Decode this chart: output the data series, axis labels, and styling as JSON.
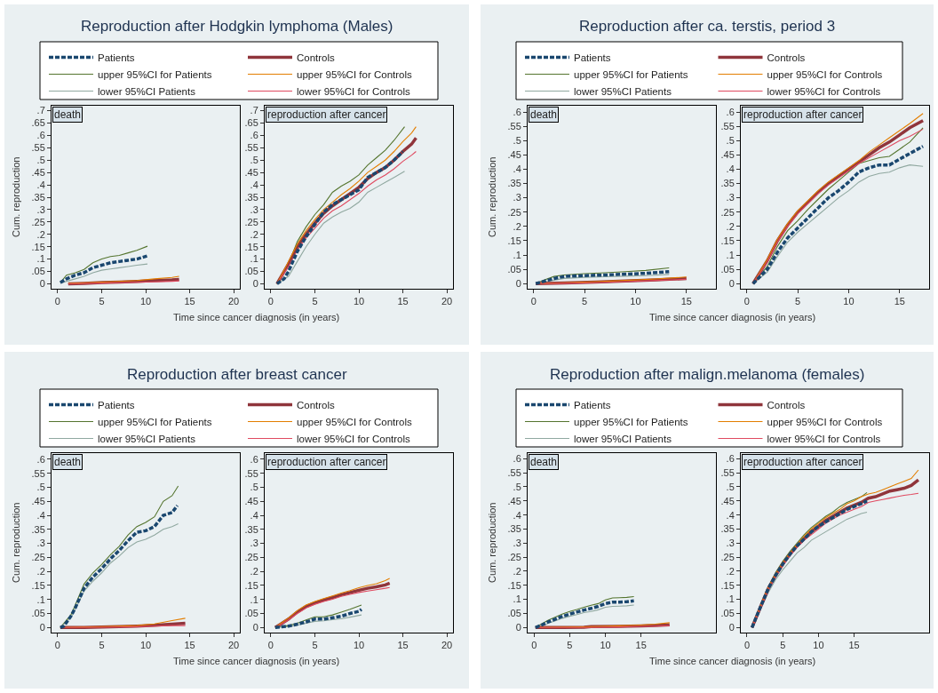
{
  "chart_data": [
    {
      "type": "line",
      "title": "Reproduction after Hodgkin lymphoma (Males)",
      "subtitle": "death",
      "ylabel": "Cum. reproduction",
      "legend": "top",
      "xlim": [
        -0.7,
        20.7
      ],
      "ylim": [
        -0.02,
        0.72
      ],
      "xticks": [
        0,
        5,
        10,
        15,
        20
      ],
      "yticks": [
        0,
        {
          "value": 0.05,
          "label": ".05"
        },
        {
          "value": 0.1,
          "label": ".1"
        },
        {
          "value": 0.15,
          "label": ".15"
        },
        {
          "value": 0.2,
          "label": ".2"
        },
        {
          "value": 0.25,
          "label": ".25"
        },
        {
          "value": 0.3,
          "label": ".3"
        },
        {
          "value": 0.35,
          "label": ".35"
        },
        {
          "value": 0.4,
          "label": ".4"
        },
        {
          "value": 0.45,
          "label": ".45"
        },
        {
          "value": 0.5,
          "label": ".5"
        },
        {
          "value": 0.55,
          "label": ".55"
        },
        {
          "value": 0.6,
          "label": ".6"
        },
        {
          "value": 0.65,
          "label": ".65"
        },
        {
          "value": 0.7,
          "label": ".7"
        }
      ],
      "series": [
        {
          "name": "Patients",
          "color": "#1a476f",
          "line_style": "dashed",
          "x": [
            0.3,
            1,
            2,
            3,
            4,
            5,
            6,
            7,
            8,
            9,
            10.2
          ],
          "values": [
            0.005,
            0.02,
            0.035,
            0.045,
            0.065,
            0.075,
            0.085,
            0.09,
            0.095,
            0.1,
            0.113
          ]
        },
        {
          "name": "upper 95%CI for Patients",
          "color": "#55752f",
          "x": [
            0.3,
            1,
            2,
            3,
            4,
            5,
            6,
            7,
            8,
            9,
            10.2
          ],
          "values": [
            0.005,
            0.035,
            0.045,
            0.058,
            0.085,
            0.1,
            0.11,
            0.115,
            0.125,
            0.135,
            0.152
          ]
        },
        {
          "name": "lower 95%CI Patients",
          "color": "#90a8a0",
          "x": [
            0.3,
            1,
            2,
            3,
            4,
            5,
            6,
            7,
            8,
            9,
            10.2
          ],
          "values": [
            0.002,
            0.01,
            0.02,
            0.03,
            0.045,
            0.055,
            0.06,
            0.065,
            0.07,
            0.075,
            0.08
          ]
        },
        {
          "name": "Controls",
          "color": "#90353b",
          "x": [
            1.2,
            3,
            5,
            7,
            9,
            11,
            13,
            13.8
          ],
          "values": [
            0,
            0.002,
            0.005,
            0.007,
            0.01,
            0.013,
            0.016,
            0.018
          ]
        },
        {
          "name": "upper 95%CI for Controls",
          "color": "#e37e00",
          "x": [
            1.2,
            5,
            9,
            11,
            13,
            13.8
          ],
          "values": [
            0.001,
            0.007,
            0.013,
            0.02,
            0.026,
            0.03
          ]
        },
        {
          "name": "lower 95%CI for Controls",
          "color": "#e04a60",
          "x": [
            1.2,
            5,
            9,
            11,
            13,
            13.8
          ],
          "values": [
            0,
            0.003,
            0.006,
            0.008,
            0.01,
            0.012
          ]
        }
      ]
    },
    {
      "type": "line",
      "subtitle": "reproduction after cancer",
      "xlabel": "Time since cancer diagnosis (in years)",
      "xlim": [
        -0.7,
        20.7
      ],
      "ylim": [
        -0.02,
        0.72
      ],
      "xticks": [
        0,
        5,
        10,
        15,
        20
      ],
      "yticks": [
        0,
        {
          "value": 0.05,
          "label": ".05"
        },
        {
          "value": 0.1,
          "label": ".1"
        },
        {
          "value": 0.15,
          "label": ".15"
        },
        {
          "value": 0.2,
          "label": ".2"
        },
        {
          "value": 0.25,
          "label": ".25"
        },
        {
          "value": 0.3,
          "label": ".3"
        },
        {
          "value": 0.35,
          "label": ".35"
        },
        {
          "value": 0.4,
          "label": ".4"
        },
        {
          "value": 0.45,
          "label": ".45"
        },
        {
          "value": 0.5,
          "label": ".5"
        },
        {
          "value": 0.55,
          "label": ".55"
        },
        {
          "value": 0.6,
          "label": ".6"
        },
        {
          "value": 0.65,
          "label": ".65"
        },
        {
          "value": 0.7,
          "label": ".7"
        }
      ],
      "series": [
        {
          "color": "#1a476f",
          "line_style": "dashed",
          "x": [
            0.7,
            1.5,
            2,
            3,
            4,
            5,
            6,
            7,
            8,
            9,
            10,
            11,
            12,
            13,
            14,
            15
          ],
          "values": [
            0,
            0.02,
            0.05,
            0.13,
            0.19,
            0.24,
            0.29,
            0.32,
            0.34,
            0.36,
            0.38,
            0.43,
            0.45,
            0.47,
            0.5,
            0.535
          ]
        },
        {
          "color": "#55752f",
          "x": [
            0.7,
            2,
            3,
            4,
            5,
            6,
            7,
            8,
            9,
            10,
            11,
            12,
            13,
            14,
            15.2
          ],
          "values": [
            0,
            0.08,
            0.17,
            0.23,
            0.28,
            0.32,
            0.37,
            0.395,
            0.415,
            0.44,
            0.48,
            0.51,
            0.54,
            0.58,
            0.635
          ]
        },
        {
          "color": "#90a8a0",
          "x": [
            0.7,
            2,
            3,
            4,
            5,
            6,
            7,
            8,
            9,
            10,
            11,
            12,
            13,
            14,
            15.2
          ],
          "values": [
            0,
            0.03,
            0.09,
            0.15,
            0.2,
            0.245,
            0.27,
            0.29,
            0.305,
            0.33,
            0.37,
            0.39,
            0.41,
            0.43,
            0.455
          ]
        },
        {
          "color": "#90353b",
          "x": [
            0.7,
            2,
            3,
            4,
            5,
            6,
            7,
            8,
            9,
            10,
            11,
            12,
            13,
            14,
            15,
            16,
            16.5
          ],
          "values": [
            0,
            0.08,
            0.15,
            0.2,
            0.245,
            0.285,
            0.315,
            0.34,
            0.365,
            0.39,
            0.425,
            0.45,
            0.47,
            0.5,
            0.535,
            0.565,
            0.59
          ]
        },
        {
          "color": "#e37e00",
          "x": [
            0.7,
            2,
            3,
            4,
            5,
            6,
            7,
            8,
            9,
            10,
            11,
            12,
            13,
            14,
            15,
            16,
            16.5
          ],
          "values": [
            0,
            0.09,
            0.16,
            0.215,
            0.26,
            0.3,
            0.33,
            0.36,
            0.385,
            0.415,
            0.45,
            0.475,
            0.5,
            0.535,
            0.575,
            0.61,
            0.635
          ]
        },
        {
          "color": "#e04a60",
          "x": [
            0.7,
            2,
            3,
            4,
            5,
            6,
            7,
            8,
            9,
            10,
            11,
            12,
            13,
            14,
            15,
            16,
            16.5
          ],
          "values": [
            0,
            0.07,
            0.135,
            0.185,
            0.225,
            0.265,
            0.295,
            0.315,
            0.34,
            0.365,
            0.395,
            0.42,
            0.44,
            0.465,
            0.495,
            0.52,
            0.535
          ]
        }
      ]
    },
    {
      "type": "line",
      "title": "Reproduction after ca. terstis, period 3",
      "subtitle": "death",
      "ylabel": "Cum. reproduction",
      "legend": "top",
      "xlim": [
        -0.6,
        17.9
      ],
      "ylim": [
        -0.018,
        0.622
      ],
      "xticks": [
        0,
        5,
        10,
        15
      ],
      "yticks": [
        0,
        {
          "value": 0.05,
          "label": ".05"
        },
        {
          "value": 0.1,
          "label": ".1"
        },
        {
          "value": 0.15,
          "label": ".15"
        },
        {
          "value": 0.2,
          "label": ".2"
        },
        {
          "value": 0.25,
          "label": ".25"
        },
        {
          "value": 0.3,
          "label": ".3"
        },
        {
          "value": 0.35,
          "label": ".35"
        },
        {
          "value": 0.4,
          "label": ".4"
        },
        {
          "value": 0.45,
          "label": ".45"
        },
        {
          "value": 0.5,
          "label": ".5"
        },
        {
          "value": 0.55,
          "label": ".55"
        },
        {
          "value": 0.6,
          "label": ".6"
        }
      ],
      "series": [
        {
          "name": "Patients",
          "color": "#1a476f",
          "line_style": "dashed",
          "x": [
            0.2,
            1,
            2,
            3,
            5,
            7,
            9,
            11,
            13.3
          ],
          "values": [
            0,
            0.008,
            0.018,
            0.025,
            0.028,
            0.03,
            0.033,
            0.036,
            0.042
          ]
        },
        {
          "name": "upper 95%CI for Patients",
          "color": "#55752f",
          "x": [
            0.2,
            1,
            2,
            3,
            5,
            7,
            9,
            11,
            13.3
          ],
          "values": [
            0,
            0.012,
            0.025,
            0.03,
            0.035,
            0.038,
            0.042,
            0.046,
            0.055
          ]
        },
        {
          "name": "lower 95%CI Patients",
          "color": "#90a8a0",
          "x": [
            0.2,
            1,
            2,
            3,
            5,
            7,
            9,
            11,
            13.3
          ],
          "values": [
            0,
            0.005,
            0.012,
            0.018,
            0.022,
            0.024,
            0.026,
            0.028,
            0.032
          ]
        },
        {
          "name": "Controls",
          "color": "#90353b",
          "x": [
            0.2,
            3,
            6,
            9,
            12,
            15
          ],
          "values": [
            0,
            0.002,
            0.005,
            0.009,
            0.013,
            0.018
          ]
        },
        {
          "name": "upper 95%CI for Controls",
          "color": "#e37e00",
          "x": [
            0.2,
            3,
            6,
            9,
            12,
            15
          ],
          "values": [
            0,
            0.003,
            0.007,
            0.011,
            0.016,
            0.023
          ]
        },
        {
          "name": "lower 95%CI for Controls",
          "color": "#e04a60",
          "x": [
            0.2,
            3,
            6,
            9,
            12,
            15
          ],
          "values": [
            0,
            0.001,
            0.003,
            0.007,
            0.011,
            0.015
          ]
        }
      ]
    },
    {
      "type": "line",
      "subtitle": "reproduction after cancer",
      "xlabel": "Time since cancer diagnosis (in years)",
      "xlim": [
        -0.6,
        17.9
      ],
      "ylim": [
        -0.018,
        0.622
      ],
      "xticks": [
        0,
        5,
        10,
        15
      ],
      "yticks": [
        0,
        {
          "value": 0.05,
          "label": ".05"
        },
        {
          "value": 0.1,
          "label": ".1"
        },
        {
          "value": 0.15,
          "label": ".15"
        },
        {
          "value": 0.2,
          "label": ".2"
        },
        {
          "value": 0.25,
          "label": ".25"
        },
        {
          "value": 0.3,
          "label": ".3"
        },
        {
          "value": 0.35,
          "label": ".35"
        },
        {
          "value": 0.4,
          "label": ".4"
        },
        {
          "value": 0.45,
          "label": ".45"
        },
        {
          "value": 0.5,
          "label": ".5"
        },
        {
          "value": 0.55,
          "label": ".55"
        },
        {
          "value": 0.6,
          "label": ".6"
        }
      ],
      "series": [
        {
          "color": "#1a476f",
          "line_style": "dashed",
          "x": [
            0.6,
            2,
            3,
            4,
            5,
            6,
            7,
            8,
            9,
            10,
            11,
            12,
            13,
            14,
            15,
            16,
            17.3
          ],
          "values": [
            0,
            0.05,
            0.11,
            0.16,
            0.195,
            0.23,
            0.265,
            0.3,
            0.325,
            0.355,
            0.39,
            0.405,
            0.415,
            0.415,
            0.435,
            0.455,
            0.48
          ]
        },
        {
          "color": "#55752f",
          "x": [
            0.6,
            2,
            3,
            4,
            5,
            6,
            7,
            8,
            9,
            10,
            11,
            12,
            13,
            14,
            15,
            16,
            17.3
          ],
          "values": [
            0,
            0.06,
            0.13,
            0.185,
            0.22,
            0.26,
            0.295,
            0.33,
            0.36,
            0.39,
            0.42,
            0.43,
            0.44,
            0.445,
            0.47,
            0.495,
            0.545
          ]
        },
        {
          "color": "#90a8a0",
          "x": [
            0.6,
            2,
            3,
            4,
            5,
            6,
            7,
            8,
            9,
            10,
            11,
            12,
            13,
            14,
            15,
            16,
            17.3
          ],
          "values": [
            0,
            0.04,
            0.095,
            0.145,
            0.18,
            0.21,
            0.24,
            0.27,
            0.3,
            0.325,
            0.355,
            0.375,
            0.385,
            0.39,
            0.405,
            0.415,
            0.41
          ]
        },
        {
          "color": "#90353b",
          "x": [
            0.6,
            2,
            3,
            4,
            5,
            6,
            7,
            8,
            9,
            10,
            11,
            12,
            13,
            14,
            15,
            16,
            17.3
          ],
          "values": [
            0,
            0.08,
            0.15,
            0.205,
            0.25,
            0.285,
            0.32,
            0.35,
            0.375,
            0.4,
            0.425,
            0.45,
            0.475,
            0.495,
            0.52,
            0.545,
            0.57
          ]
        },
        {
          "color": "#e37e00",
          "x": [
            0.6,
            2,
            3,
            4,
            5,
            6,
            7,
            8,
            9,
            10,
            11,
            12,
            13,
            14,
            15,
            16,
            17.3
          ],
          "values": [
            0,
            0.085,
            0.155,
            0.21,
            0.255,
            0.29,
            0.325,
            0.355,
            0.38,
            0.405,
            0.43,
            0.46,
            0.485,
            0.51,
            0.535,
            0.56,
            0.595
          ]
        },
        {
          "color": "#e04a60",
          "x": [
            0.6,
            2,
            3,
            4,
            5,
            6,
            7,
            8,
            9,
            10,
            11,
            12,
            13,
            14,
            15,
            16,
            17.3
          ],
          "values": [
            0,
            0.075,
            0.145,
            0.2,
            0.245,
            0.28,
            0.315,
            0.345,
            0.37,
            0.395,
            0.42,
            0.44,
            0.46,
            0.48,
            0.5,
            0.515,
            0.54
          ]
        }
      ]
    },
    {
      "type": "line",
      "title": "Reproduction after breast cancer",
      "subtitle": "death",
      "ylabel": "Cum. reproduction",
      "legend": "top",
      "xlim": [
        -0.7,
        20.7
      ],
      "ylim": [
        -0.018,
        0.622
      ],
      "xticks": [
        0,
        5,
        10,
        15,
        20
      ],
      "yticks": [
        0,
        {
          "value": 0.05,
          "label": ".05"
        },
        {
          "value": 0.1,
          "label": ".1"
        },
        {
          "value": 0.15,
          "label": ".15"
        },
        {
          "value": 0.2,
          "label": ".2"
        },
        {
          "value": 0.25,
          "label": ".25"
        },
        {
          "value": 0.3,
          "label": ".3"
        },
        {
          "value": 0.35,
          "label": ".35"
        },
        {
          "value": 0.4,
          "label": ".4"
        },
        {
          "value": 0.45,
          "label": ".45"
        },
        {
          "value": 0.5,
          "label": ".5"
        },
        {
          "value": 0.55,
          "label": ".55"
        },
        {
          "value": 0.6,
          "label": ".6"
        }
      ],
      "series": [
        {
          "name": "Patients",
          "color": "#1a476f",
          "line_style": "dashed",
          "x": [
            0.3,
            0.7,
            1.5,
            2,
            3,
            4,
            5,
            6,
            7,
            8,
            9,
            10,
            11,
            12,
            13,
            13.6
          ],
          "values": [
            0,
            0.005,
            0.04,
            0.07,
            0.14,
            0.18,
            0.21,
            0.245,
            0.275,
            0.31,
            0.34,
            0.345,
            0.36,
            0.4,
            0.41,
            0.435
          ]
        },
        {
          "name": "upper 95%CI for Patients",
          "color": "#55752f",
          "x": [
            0.3,
            1.5,
            2,
            3,
            4,
            5,
            6,
            7,
            8,
            9,
            10,
            11,
            12,
            13,
            13.7
          ],
          "values": [
            0,
            0.045,
            0.08,
            0.155,
            0.195,
            0.225,
            0.26,
            0.29,
            0.33,
            0.36,
            0.375,
            0.395,
            0.45,
            0.47,
            0.505
          ]
        },
        {
          "name": "lower 95%CI Patients",
          "color": "#90a8a0",
          "x": [
            0.3,
            1.5,
            2,
            3,
            4,
            5,
            6,
            7,
            8,
            9,
            10,
            11,
            12,
            13,
            13.7
          ],
          "values": [
            0,
            0.035,
            0.065,
            0.13,
            0.165,
            0.195,
            0.23,
            0.255,
            0.285,
            0.305,
            0.315,
            0.33,
            0.35,
            0.36,
            0.37
          ]
        },
        {
          "name": "Controls",
          "color": "#90353b",
          "x": [
            0.3,
            3,
            5,
            7,
            9,
            11,
            13,
            14.5
          ],
          "values": [
            0,
            0,
            0.002,
            0.003,
            0.005,
            0.008,
            0.012,
            0.015
          ]
        },
        {
          "name": "upper 95%CI for Controls",
          "color": "#e37e00",
          "x": [
            0.3,
            5,
            9,
            11,
            13,
            14.5
          ],
          "values": [
            0,
            0.003,
            0.007,
            0.013,
            0.025,
            0.033
          ]
        },
        {
          "name": "lower 95%CI for Controls",
          "color": "#e04a60",
          "x": [
            0.3,
            5,
            9,
            11,
            13,
            14.5
          ],
          "values": [
            0,
            0.001,
            0.003,
            0.005,
            0.007,
            0.007
          ]
        }
      ]
    },
    {
      "type": "line",
      "subtitle": "reproduction after cancer",
      "xlabel": "Time since cancer diagnosis (in years)",
      "xlim": [
        -0.7,
        20.7
      ],
      "ylim": [
        -0.018,
        0.622
      ],
      "xticks": [
        0,
        5,
        10,
        15,
        20
      ],
      "yticks": [
        0,
        {
          "value": 0.05,
          "label": ".05"
        },
        {
          "value": 0.1,
          "label": ".1"
        },
        {
          "value": 0.15,
          "label": ".15"
        },
        {
          "value": 0.2,
          "label": ".2"
        },
        {
          "value": 0.25,
          "label": ".25"
        },
        {
          "value": 0.3,
          "label": ".3"
        },
        {
          "value": 0.35,
          "label": ".35"
        },
        {
          "value": 0.4,
          "label": ".4"
        },
        {
          "value": 0.45,
          "label": ".45"
        },
        {
          "value": 0.5,
          "label": ".5"
        },
        {
          "value": 0.55,
          "label": ".55"
        },
        {
          "value": 0.6,
          "label": ".6"
        }
      ],
      "series": [
        {
          "color": "#1a476f",
          "line_style": "dashed",
          "x": [
            0.5,
            2,
            3,
            4,
            5,
            6,
            7,
            8,
            9,
            10,
            10.3
          ],
          "values": [
            0,
            0.005,
            0.012,
            0.02,
            0.03,
            0.03,
            0.035,
            0.04,
            0.05,
            0.058,
            0.065
          ]
        },
        {
          "color": "#55752f",
          "x": [
            0.5,
            2,
            3,
            4,
            5,
            6,
            7,
            8,
            9,
            10.3
          ],
          "values": [
            0,
            0.007,
            0.015,
            0.027,
            0.038,
            0.038,
            0.045,
            0.055,
            0.065,
            0.08
          ]
        },
        {
          "color": "#90a8a0",
          "x": [
            0.5,
            2,
            3,
            4,
            5,
            6,
            7,
            8,
            9,
            10.3
          ],
          "values": [
            0,
            0.003,
            0.008,
            0.015,
            0.022,
            0.024,
            0.028,
            0.031,
            0.037,
            0.045
          ]
        },
        {
          "color": "#90353b",
          "x": [
            0.5,
            1,
            2,
            3,
            4,
            5,
            6,
            7,
            8,
            9,
            10,
            11,
            12,
            13,
            13.5
          ],
          "values": [
            0,
            0.01,
            0.03,
            0.055,
            0.075,
            0.088,
            0.098,
            0.107,
            0.117,
            0.125,
            0.133,
            0.14,
            0.145,
            0.152,
            0.158
          ]
        },
        {
          "color": "#e37e00",
          "x": [
            0.5,
            1,
            2,
            3,
            4,
            5,
            6,
            7,
            8,
            9,
            10,
            11,
            12,
            13,
            13.5
          ],
          "values": [
            0,
            0.012,
            0.034,
            0.06,
            0.08,
            0.093,
            0.103,
            0.113,
            0.123,
            0.132,
            0.142,
            0.15,
            0.156,
            0.167,
            0.175
          ]
        },
        {
          "color": "#e04a60",
          "x": [
            0.5,
            1,
            2,
            3,
            4,
            5,
            6,
            7,
            8,
            9,
            10,
            11,
            12,
            13,
            13.5
          ],
          "values": [
            0,
            0.008,
            0.027,
            0.05,
            0.07,
            0.083,
            0.093,
            0.101,
            0.111,
            0.118,
            0.125,
            0.13,
            0.135,
            0.14,
            0.143
          ]
        }
      ]
    },
    {
      "type": "line",
      "title": "Reproduction after malign.melanoma (females)",
      "subtitle": "death",
      "ylabel": "Cum. reproduction",
      "legend": "top",
      "xlim": [
        -0.9,
        25.5
      ],
      "ylim": [
        -0.018,
        0.62
      ],
      "xticks": [
        0,
        5,
        10,
        15
      ],
      "yticks": [
        0,
        {
          "value": 0.05,
          "label": ".05"
        },
        {
          "value": 0.1,
          "label": ".1"
        },
        {
          "value": 0.15,
          "label": ".15"
        },
        {
          "value": 0.2,
          "label": ".2"
        },
        {
          "value": 0.25,
          "label": ".25"
        },
        {
          "value": 0.3,
          "label": ".3"
        },
        {
          "value": 0.35,
          "label": ".35"
        },
        {
          "value": 0.4,
          "label": ".4"
        },
        {
          "value": 0.45,
          "label": ".45"
        },
        {
          "value": 0.5,
          "label": ".5"
        },
        {
          "value": 0.55,
          "label": ".55"
        },
        {
          "value": 0.6,
          "label": ".6"
        }
      ],
      "series": [
        {
          "name": "Patients",
          "color": "#1a476f",
          "line_style": "dashed",
          "x": [
            0.2,
            1,
            2,
            3,
            4,
            5,
            6,
            7,
            8,
            9,
            10,
            11,
            12,
            13,
            14
          ],
          "values": [
            0,
            0.008,
            0.02,
            0.03,
            0.04,
            0.048,
            0.055,
            0.062,
            0.068,
            0.075,
            0.085,
            0.09,
            0.09,
            0.092,
            0.095
          ]
        },
        {
          "name": "upper 95%CI for Patients",
          "color": "#55752f",
          "x": [
            0.2,
            1,
            2,
            3,
            4,
            5,
            6,
            7,
            8,
            9,
            10,
            11,
            12,
            13,
            14
          ],
          "values": [
            0,
            0.012,
            0.026,
            0.037,
            0.048,
            0.057,
            0.064,
            0.072,
            0.079,
            0.085,
            0.098,
            0.105,
            0.106,
            0.107,
            0.11
          ]
        },
        {
          "name": "lower 95%CI Patients",
          "color": "#90a8a0",
          "x": [
            0.2,
            1,
            2,
            3,
            4,
            5,
            6,
            7,
            8,
            9,
            10,
            11,
            12,
            13,
            14
          ],
          "values": [
            0,
            0.005,
            0.015,
            0.024,
            0.033,
            0.04,
            0.046,
            0.053,
            0.057,
            0.063,
            0.072,
            0.075,
            0.076,
            0.077,
            0.08
          ]
        },
        {
          "name": "Controls",
          "color": "#90353b",
          "x": [
            0.2,
            4,
            7,
            8,
            12,
            15,
            17,
            19
          ],
          "values": [
            0,
            0,
            0.001,
            0.003,
            0.004,
            0.006,
            0.007,
            0.01
          ]
        },
        {
          "name": "upper 95%CI for Controls",
          "color": "#e37e00",
          "x": [
            0.2,
            7,
            12,
            15,
            17,
            19
          ],
          "values": [
            0,
            0.002,
            0.006,
            0.009,
            0.012,
            0.017
          ]
        },
        {
          "name": "lower 95%CI for Controls",
          "color": "#e04a60",
          "x": [
            0.2,
            7,
            12,
            15,
            17,
            19
          ],
          "values": [
            0,
            0,
            0.002,
            0.004,
            0.005,
            0.007
          ]
        }
      ]
    },
    {
      "type": "line",
      "subtitle": "reproduction after cancer",
      "xlabel": "Time since cancer diagnosis (in years)",
      "xlim": [
        -0.87,
        25.5
      ],
      "ylim": [
        -0.018,
        0.62
      ],
      "xticks": [
        0,
        5,
        10,
        15
      ],
      "yticks": [
        0,
        {
          "value": 0.05,
          "label": ".05"
        },
        {
          "value": 0.1,
          "label": ".1"
        },
        {
          "value": 0.15,
          "label": ".15"
        },
        {
          "value": 0.2,
          "label": ".2"
        },
        {
          "value": 0.25,
          "label": ".25"
        },
        {
          "value": 0.3,
          "label": ".3"
        },
        {
          "value": 0.35,
          "label": ".35"
        },
        {
          "value": 0.4,
          "label": ".4"
        },
        {
          "value": 0.45,
          "label": ".45"
        },
        {
          "value": 0.5,
          "label": ".5"
        },
        {
          "value": 0.55,
          "label": ".55"
        },
        {
          "value": 0.6,
          "label": ".6"
        }
      ],
      "series": [
        {
          "color": "#1a476f",
          "line_style": "dashed",
          "x": [
            0.7,
            2,
            3,
            4,
            5,
            6,
            7,
            8,
            9,
            10,
            11,
            12,
            13,
            14,
            15,
            16,
            16.8
          ],
          "values": [
            0,
            0.08,
            0.14,
            0.185,
            0.225,
            0.26,
            0.29,
            0.315,
            0.34,
            0.36,
            0.375,
            0.39,
            0.405,
            0.42,
            0.43,
            0.44,
            0.45
          ]
        },
        {
          "color": "#55752f",
          "x": [
            0.7,
            2,
            3,
            4,
            5,
            6,
            7,
            8,
            9,
            10,
            11,
            12,
            13,
            14,
            15,
            16,
            16.8
          ],
          "values": [
            0,
            0.085,
            0.145,
            0.195,
            0.235,
            0.27,
            0.3,
            0.33,
            0.355,
            0.375,
            0.395,
            0.41,
            0.43,
            0.445,
            0.455,
            0.465,
            0.48
          ]
        },
        {
          "color": "#90a8a0",
          "x": [
            0.7,
            2,
            3,
            4,
            5,
            6,
            7,
            8,
            9,
            10,
            11,
            12,
            13,
            14,
            15,
            16,
            16.8
          ],
          "values": [
            0,
            0.07,
            0.125,
            0.17,
            0.205,
            0.235,
            0.265,
            0.285,
            0.31,
            0.325,
            0.34,
            0.355,
            0.37,
            0.385,
            0.395,
            0.405,
            0.41
          ]
        },
        {
          "color": "#90353b",
          "x": [
            0.7,
            2,
            3,
            4,
            5,
            6,
            7,
            8,
            9,
            10,
            11,
            12,
            13,
            14,
            15,
            16,
            17,
            18,
            19,
            20,
            21,
            22,
            23,
            24
          ],
          "values": [
            0,
            0.08,
            0.14,
            0.185,
            0.225,
            0.26,
            0.29,
            0.315,
            0.34,
            0.36,
            0.38,
            0.395,
            0.41,
            0.425,
            0.435,
            0.445,
            0.46,
            0.465,
            0.475,
            0.485,
            0.49,
            0.495,
            0.505,
            0.525
          ]
        },
        {
          "color": "#e37e00",
          "x": [
            0.7,
            2,
            3,
            4,
            5,
            6,
            7,
            8,
            9,
            10,
            11,
            12,
            13,
            14,
            15,
            16,
            17,
            18,
            19,
            20,
            21,
            22,
            23,
            24
          ],
          "values": [
            0,
            0.085,
            0.145,
            0.19,
            0.23,
            0.265,
            0.295,
            0.325,
            0.35,
            0.37,
            0.39,
            0.405,
            0.42,
            0.44,
            0.45,
            0.465,
            0.475,
            0.48,
            0.49,
            0.5,
            0.51,
            0.52,
            0.53,
            0.56
          ]
        },
        {
          "color": "#e04a60",
          "x": [
            0.7,
            2,
            3,
            4,
            5,
            6,
            7,
            8,
            9,
            10,
            11,
            12,
            13,
            14,
            15,
            16,
            17,
            18,
            19,
            20,
            21,
            22,
            23,
            24
          ],
          "values": [
            0,
            0.075,
            0.135,
            0.18,
            0.22,
            0.255,
            0.285,
            0.31,
            0.33,
            0.35,
            0.37,
            0.385,
            0.4,
            0.41,
            0.42,
            0.43,
            0.445,
            0.45,
            0.455,
            0.46,
            0.465,
            0.47,
            0.473,
            0.477
          ]
        }
      ]
    }
  ]
}
